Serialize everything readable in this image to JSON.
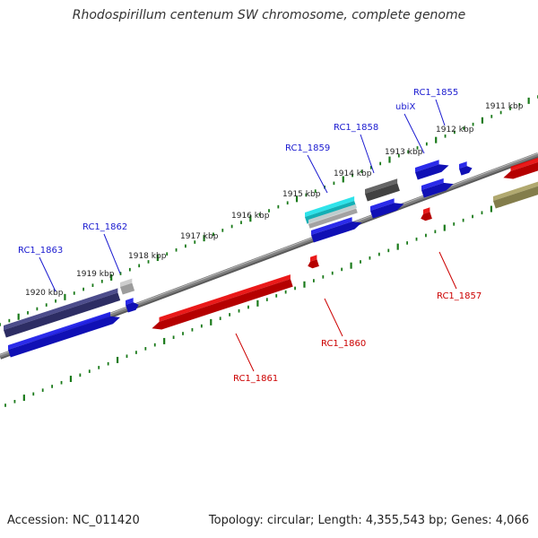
{
  "title": "Rhodospirillum centenum SW chromosome, complete genome",
  "footer": {
    "accession": "Accession: NC_011420",
    "topology": "Topology: circular; Length: 4,355,543 bp; Genes: 4,066"
  },
  "scale_labels": [
    "1911 kbp",
    "1912 kbp",
    "1913 kbp",
    "1914 kbp",
    "1915 kbp",
    "1916 kbp",
    "1917 kbp",
    "1918 kbp",
    "1919 kbp",
    "1920 kbp"
  ],
  "gene_labels": [
    "RC1_1855",
    "ubiX",
    "RC1_1858",
    "RC1_1859",
    "RC1_1862",
    "RC1_1863",
    "RC1_1857",
    "RC1_1860",
    "RC1_1861"
  ],
  "colors": {
    "forward_gene": "#1010e0",
    "reverse_gene": "#e00000",
    "forward_label": "#1a1ad0",
    "reverse_label": "#cc0000",
    "backbone": "#808080",
    "tick": "#1a7a1a"
  }
}
